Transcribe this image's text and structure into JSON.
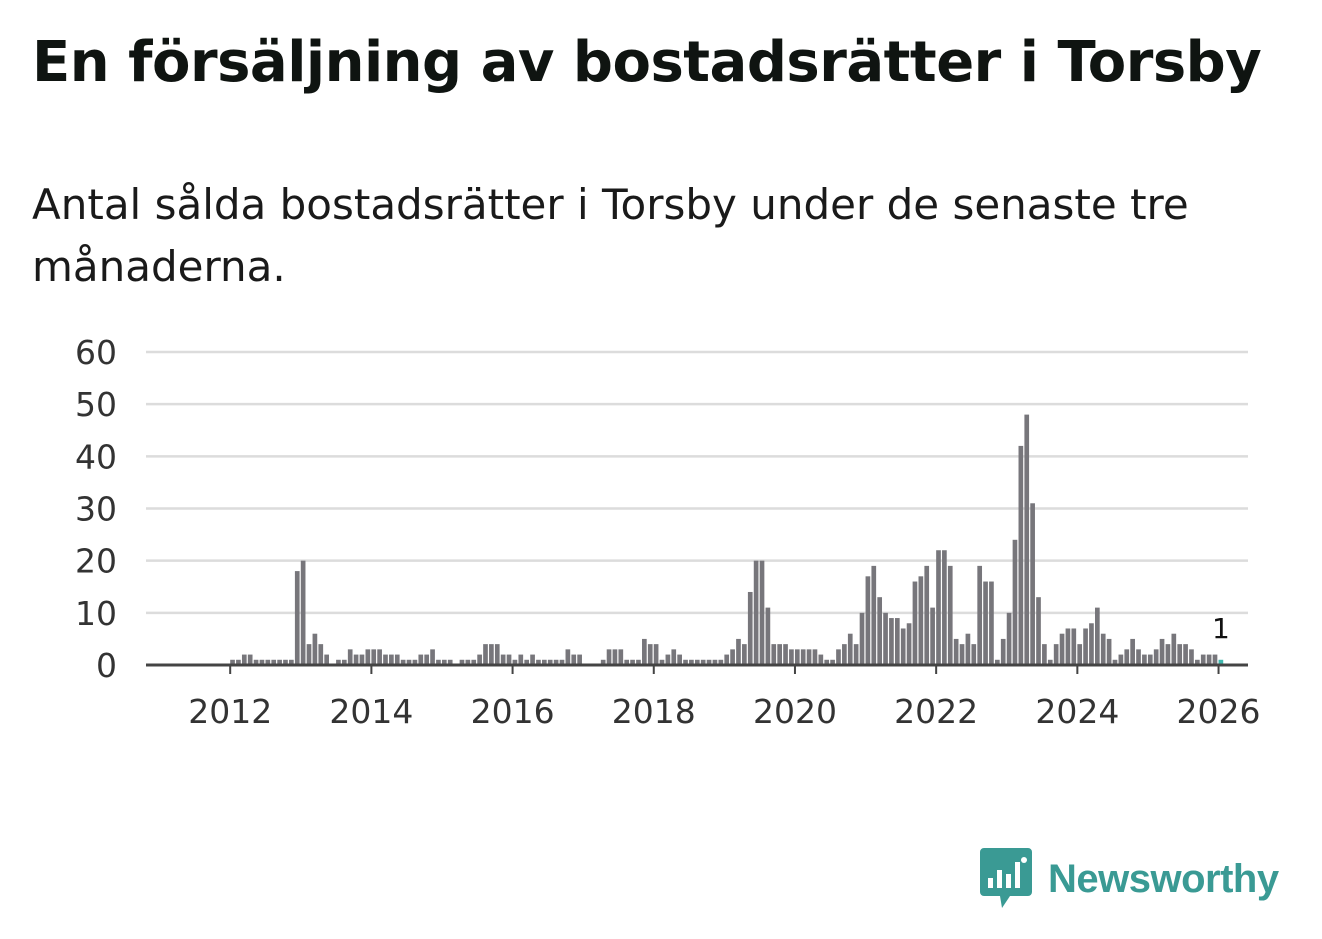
{
  "title": "En försäljning av bostadsrätter i Torsby",
  "subtitle": "Antal sålda bostadsrätter i Torsby under de senaste tre månaderna.",
  "brand": {
    "name": "Newsworthy",
    "color": "#3a9a94"
  },
  "colors": {
    "bar": "#77767b",
    "highlight": "#3fb8ae",
    "grid": "#dcdcdc",
    "axis": "#444444"
  },
  "chart_data": {
    "type": "bar",
    "title": "Antal sålda bostadsrätter i Torsby under de senaste tre månaderna.",
    "xlabel": "",
    "ylabel": "",
    "ylim": [
      0,
      60
    ],
    "yticks": [
      0,
      10,
      20,
      30,
      40,
      50,
      60
    ],
    "xticks": [
      "2012",
      "2014",
      "2016",
      "2018",
      "2020",
      "2022",
      "2024",
      "2026"
    ],
    "start": "2011-01",
    "grid": true,
    "values": [
      0,
      0,
      0,
      0,
      0,
      0,
      0,
      0,
      0,
      0,
      0,
      0,
      1,
      1,
      2,
      2,
      1,
      1,
      1,
      1,
      1,
      1,
      1,
      18,
      20,
      4,
      6,
      4,
      2,
      0,
      1,
      1,
      3,
      2,
      2,
      3,
      3,
      3,
      2,
      2,
      2,
      1,
      1,
      1,
      2,
      2,
      3,
      1,
      1,
      1,
      0,
      1,
      1,
      1,
      2,
      4,
      4,
      4,
      2,
      2,
      1,
      2,
      1,
      2,
      1,
      1,
      1,
      1,
      1,
      3,
      2,
      2,
      0,
      0,
      0,
      1,
      3,
      3,
      3,
      1,
      1,
      1,
      5,
      4,
      4,
      1,
      2,
      3,
      2,
      1,
      1,
      1,
      1,
      1,
      1,
      1,
      2,
      3,
      5,
      4,
      14,
      20,
      20,
      11,
      4,
      4,
      4,
      3,
      3,
      3,
      3,
      3,
      2,
      1,
      1,
      3,
      4,
      6,
      4,
      10,
      17,
      19,
      13,
      10,
      9,
      9,
      7,
      8,
      16,
      17,
      19,
      11,
      22,
      22,
      19,
      5,
      4,
      6,
      4,
      19,
      16,
      16,
      1,
      5,
      10,
      24,
      42,
      48,
      31,
      13,
      4,
      1,
      4,
      6,
      7,
      7,
      4,
      7,
      8,
      11,
      6,
      5,
      1,
      2,
      3,
      5,
      3,
      2,
      2,
      3,
      5,
      4,
      6,
      4,
      4,
      3,
      1,
      2,
      2,
      2,
      1
    ],
    "highlight_last": true,
    "annotations": [
      "1"
    ]
  }
}
